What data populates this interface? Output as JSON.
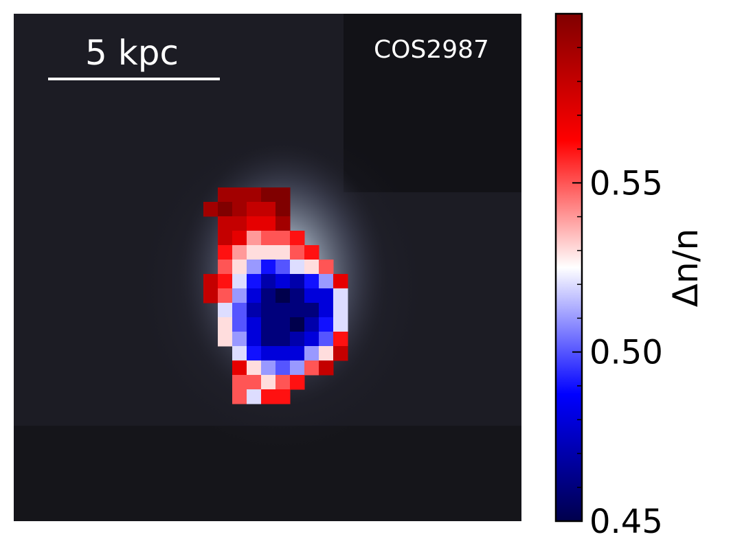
{
  "chart_data": {
    "type": "heatmap",
    "title": "",
    "object_label": "COS2987",
    "scale_bar_label": "5 kpc",
    "colorbar": {
      "label": "Δn/n",
      "min": 0.45,
      "max": 0.6,
      "ticks": [
        0.45,
        0.5,
        0.55
      ],
      "tick_labels": [
        "0.45",
        "0.50",
        "0.55"
      ],
      "minor_step": 0.01,
      "colormap": "seismic"
    },
    "background": {
      "description": "grayscale galaxy image with a central bright source",
      "colors": {
        "dark": "#0c0c10",
        "mid": "#2a2a38",
        "glow": "#9aa6b2"
      }
    },
    "map": {
      "cols": 10,
      "rows": 16,
      "value_grid": [
        [
          null,
          0.59,
          0.59,
          0.59,
          0.6,
          0.6,
          null,
          null,
          null,
          null
        ],
        [
          0.59,
          0.6,
          0.59,
          0.58,
          0.58,
          0.6,
          null,
          null,
          null,
          null
        ],
        [
          null,
          0.58,
          0.58,
          0.57,
          0.57,
          0.59,
          null,
          null,
          null,
          null
        ],
        [
          null,
          0.58,
          0.57,
          0.54,
          0.55,
          0.55,
          0.56,
          null,
          null,
          null
        ],
        [
          null,
          0.56,
          0.54,
          0.53,
          0.53,
          0.53,
          0.55,
          0.56,
          null,
          null
        ],
        [
          null,
          0.55,
          0.53,
          0.51,
          0.49,
          0.5,
          0.52,
          0.53,
          0.55,
          null
        ],
        [
          0.58,
          0.56,
          0.52,
          0.49,
          0.47,
          0.48,
          0.47,
          0.49,
          0.51,
          0.57
        ],
        [
          0.58,
          0.55,
          0.51,
          0.48,
          0.46,
          0.45,
          0.46,
          0.48,
          0.48,
          0.52
        ],
        [
          null,
          0.52,
          0.5,
          0.47,
          0.46,
          0.46,
          0.46,
          0.46,
          0.48,
          0.52
        ],
        [
          null,
          0.53,
          0.5,
          0.48,
          0.46,
          0.46,
          0.45,
          0.47,
          0.49,
          0.52
        ],
        [
          null,
          0.53,
          0.51,
          0.48,
          0.46,
          0.46,
          0.47,
          0.48,
          0.5,
          0.56
        ],
        [
          null,
          null,
          0.52,
          0.49,
          0.48,
          0.48,
          0.48,
          0.51,
          0.53,
          0.58
        ],
        [
          null,
          null,
          0.57,
          0.53,
          0.51,
          0.5,
          0.51,
          0.55,
          0.58,
          null
        ],
        [
          null,
          null,
          0.55,
          0.55,
          0.53,
          0.55,
          0.56,
          null,
          null,
          null
        ],
        [
          null,
          null,
          0.55,
          0.52,
          0.56,
          0.56,
          null,
          null,
          null,
          null
        ],
        [
          null,
          null,
          null,
          null,
          null,
          null,
          null,
          null,
          null,
          null
        ]
      ]
    }
  }
}
